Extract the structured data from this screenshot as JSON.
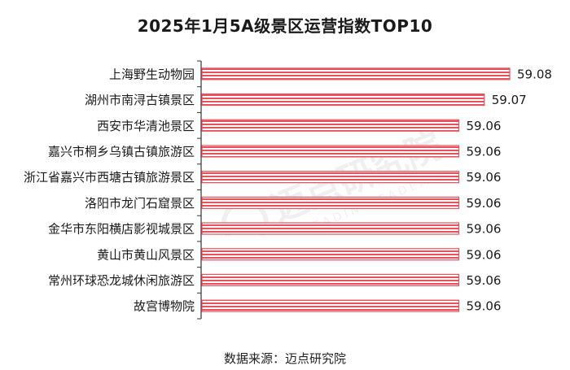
{
  "chart_data": {
    "type": "bar",
    "orientation": "horizontal",
    "title": "2025年1月5A级景区运营指数TOP10",
    "categories": [
      "上海野生动物园",
      "湖州市南浔古镇景区",
      "西安市华清池景区",
      "嘉兴市桐乡乌镇古镇旅游区",
      "浙江省嘉兴市西塘古镇旅游景区",
      "洛阳市龙门石窟景区",
      "金华市东阳横店影视城景区",
      "黄山市黄山风景区",
      "常州环球恐龙城休闲旅游区",
      "故宫博物院"
    ],
    "values": [
      59.08,
      59.07,
      59.06,
      59.06,
      59.06,
      59.06,
      59.06,
      59.06,
      59.06,
      59.06
    ],
    "value_labels": [
      "59.08",
      "59.07",
      "59.06",
      "59.06",
      "59.06",
      "59.06",
      "59.06",
      "59.06",
      "59.06",
      "59.06"
    ],
    "xlim": [
      59.0,
      59.08
    ],
    "grid": false,
    "legend": "none",
    "bar_color": "#e8505b",
    "bar_stripe_color": "#ffffff"
  },
  "footer": {
    "source": "数据来源：迈点研究院"
  },
  "watermark": {
    "text": "迈点研究院",
    "subtext": "MEADIN ACADEMY"
  }
}
